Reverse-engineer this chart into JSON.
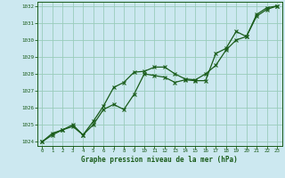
{
  "background_color": "#cce8f0",
  "grid_color": "#99ccbb",
  "line_color": "#1a5c1a",
  "xlabel": "Graphe pression niveau de la mer (hPa)",
  "xlabel_color": "#1a5c1a",
  "tick_color": "#1a5c1a",
  "xlim": [
    -0.5,
    23.5
  ],
  "ylim": [
    1023.75,
    1032.25
  ],
  "yticks": [
    1024,
    1025,
    1026,
    1027,
    1028,
    1029,
    1030,
    1031,
    1032
  ],
  "xticks": [
    0,
    1,
    2,
    3,
    4,
    5,
    6,
    7,
    8,
    9,
    10,
    11,
    12,
    13,
    14,
    15,
    16,
    17,
    18,
    19,
    20,
    21,
    22,
    23
  ],
  "series1_x": [
    0,
    1,
    2,
    3,
    4,
    5,
    6,
    7,
    8,
    9,
    10,
    11,
    12,
    13,
    14,
    15,
    16,
    17,
    18,
    19,
    20,
    21,
    22,
    23
  ],
  "series1_y": [
    1024.0,
    1024.5,
    1024.7,
    1025.0,
    1024.4,
    1025.2,
    1026.1,
    1027.2,
    1027.5,
    1028.1,
    1028.15,
    1028.4,
    1028.4,
    1028.0,
    1027.7,
    1027.65,
    1028.0,
    1028.5,
    1029.4,
    1030.0,
    1030.2,
    1031.4,
    1031.8,
    1032.0
  ],
  "series2_x": [
    0,
    1,
    2,
    3,
    4,
    5,
    6,
    7,
    8,
    9,
    10,
    11,
    12,
    13,
    14,
    15,
    16,
    17,
    18,
    19,
    20,
    21,
    22,
    23
  ],
  "series2_y": [
    1024.0,
    1024.4,
    1024.7,
    1024.9,
    1024.4,
    1025.0,
    1025.9,
    1026.2,
    1025.9,
    1026.8,
    1028.0,
    1027.9,
    1027.8,
    1027.5,
    1027.65,
    1027.6,
    1027.6,
    1029.2,
    1029.5,
    1030.5,
    1030.2,
    1031.5,
    1031.9,
    1032.0
  ]
}
